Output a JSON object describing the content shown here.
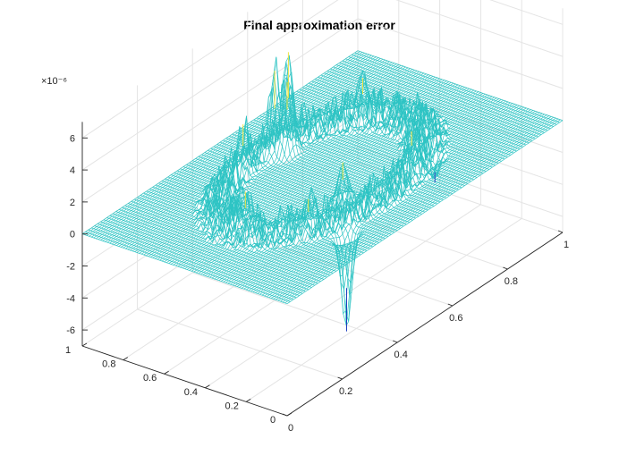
{
  "chart_data": {
    "type": "surface-mesh",
    "title": "Final approximation error",
    "x_axis": {
      "range": [
        0,
        1
      ],
      "ticks": [
        0,
        0.2,
        0.4,
        0.6,
        0.8,
        1
      ],
      "tick_labels": [
        "0",
        "0.2",
        "0.4",
        "0.6",
        "0.8",
        "1"
      ]
    },
    "y_axis": {
      "range": [
        0,
        1
      ],
      "ticks": [
        0,
        0.2,
        0.4,
        0.6,
        0.8,
        1
      ],
      "tick_labels": [
        "0",
        "0.2",
        "0.4",
        "0.6",
        "0.8",
        "1"
      ]
    },
    "z_axis": {
      "range": [
        -7e-06,
        7e-06
      ],
      "ticks": [
        -6,
        -4,
        -2,
        0,
        2,
        4,
        6
      ],
      "tick_labels": [
        "-6",
        "-4",
        "-2",
        "0",
        "2",
        "4",
        "6"
      ],
      "exponent_label": "×10⁻⁶"
    },
    "grid": true,
    "mesh_color": "#2ec4c4",
    "colormap_high": "#f0e442",
    "colormap_low": "#1f3fbf",
    "surface": {
      "description_of_shape": "flat zero-error plane with a noisy ring of error spikes",
      "ring_center": [
        0.5,
        0.5
      ],
      "ring_radius": 0.3,
      "peaks": [
        {
          "x": 0.54,
          "y": 0.72,
          "z": 6.4
        },
        {
          "x": 0.52,
          "y": 0.76,
          "z": 5.3
        },
        {
          "x": 0.58,
          "y": 0.78,
          "z": 3.8
        },
        {
          "x": 0.42,
          "y": 0.78,
          "z": 3.0
        },
        {
          "x": 0.22,
          "y": 0.5,
          "z": 2.3
        },
        {
          "x": 0.78,
          "y": 0.68,
          "z": 2.2
        },
        {
          "x": 0.66,
          "y": 0.28,
          "z": 2.0
        },
        {
          "x": 0.44,
          "y": 0.32,
          "z": 2.4
        },
        {
          "x": 0.3,
          "y": 0.3,
          "z": 1.8
        },
        {
          "x": 0.7,
          "y": 0.22,
          "z": -1.4
        },
        {
          "x": 0.32,
          "y": 0.14,
          "z": -6.0
        }
      ]
    }
  }
}
